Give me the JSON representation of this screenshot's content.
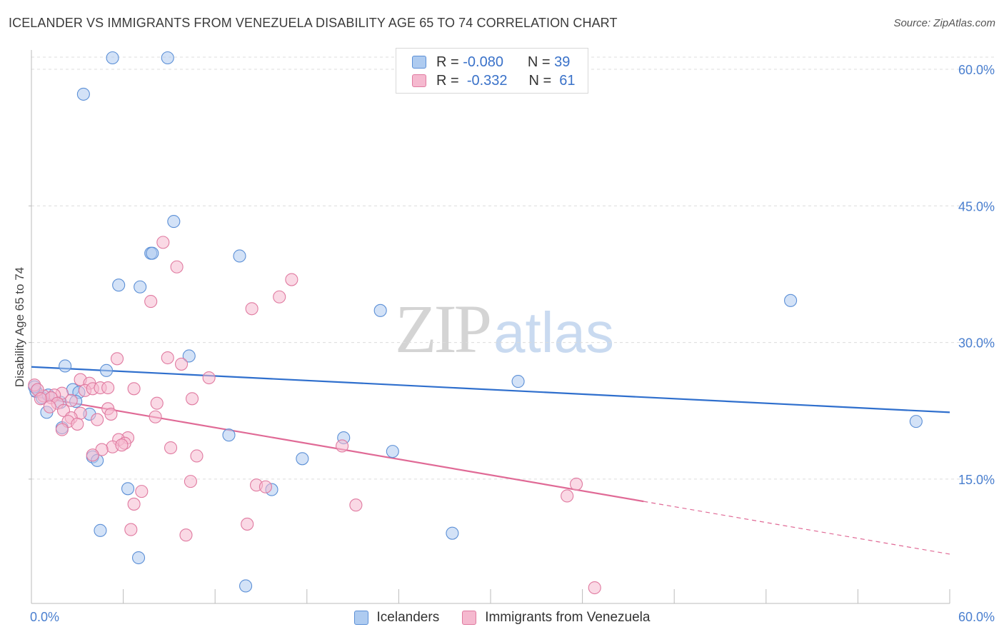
{
  "header": {
    "title": "ICELANDER VS IMMIGRANTS FROM VENEZUELA DISABILITY AGE 65 TO 74 CORRELATION CHART",
    "source": "Source: ZipAtlas.com"
  },
  "legend_box": {
    "rows": [
      {
        "r_label": "R =",
        "r_value": "-0.080",
        "n_label": "N =",
        "n_value": "39"
      },
      {
        "r_label": "R =",
        "r_value": "-0.332",
        "n_label": "N =",
        "n_value": "61"
      }
    ]
  },
  "watermark": {
    "zip": "ZIP",
    "atlas": "atlas"
  },
  "colors": {
    "blue_fill": "#aecbf0",
    "blue_stroke": "#5b8fd6",
    "blue_line": "#2f6fcd",
    "pink_fill": "#f5b9cf",
    "pink_stroke": "#e07aa0",
    "pink_line": "#e06a96",
    "grid": "#dcdcdc",
    "tick_text": "#4a7fcf"
  },
  "chart_data": {
    "type": "scatter",
    "title": "ICELANDER VS IMMIGRANTS FROM VENEZUELA DISABILITY AGE 65 TO 74 CORRELATION CHART",
    "xlabel": "",
    "ylabel": "Disability Age 65 to 74",
    "xlim": [
      0,
      60
    ],
    "ylim": [
      0,
      61
    ],
    "y_ticks": [
      15,
      30,
      45,
      60
    ],
    "y_tick_labels": [
      "15.0%",
      "30.0%",
      "45.0%",
      "60.0%"
    ],
    "x_tick_labels": [
      "0.0%",
      "60.0%"
    ],
    "x_minor_ticks": [
      0,
      6,
      12,
      18,
      24,
      30,
      36,
      42,
      48,
      54,
      60
    ],
    "grid": true,
    "series": [
      {
        "name": "Icelanders",
        "color": "blue",
        "points": [
          [
            5.3,
            60.0
          ],
          [
            8.9,
            60.0
          ],
          [
            3.4,
            56.0
          ],
          [
            9.3,
            42.0
          ],
          [
            7.8,
            38.5
          ],
          [
            7.9,
            38.5
          ],
          [
            13.6,
            38.2
          ],
          [
            5.7,
            35.0
          ],
          [
            7.1,
            34.8
          ],
          [
            22.8,
            32.2
          ],
          [
            49.6,
            33.3
          ],
          [
            10.3,
            27.2
          ],
          [
            2.2,
            26.1
          ],
          [
            4.9,
            25.6
          ],
          [
            31.8,
            24.4
          ],
          [
            0.3,
            23.3
          ],
          [
            0.7,
            22.6
          ],
          [
            1.1,
            22.9
          ],
          [
            2.7,
            23.5
          ],
          [
            3.1,
            23.2
          ],
          [
            1.9,
            22.1
          ],
          [
            2.9,
            22.2
          ],
          [
            1.0,
            21.0
          ],
          [
            3.8,
            20.8
          ],
          [
            2.0,
            19.3
          ],
          [
            57.8,
            20.0
          ],
          [
            12.9,
            18.5
          ],
          [
            20.4,
            18.2
          ],
          [
            23.6,
            16.7
          ],
          [
            4.0,
            16.1
          ],
          [
            4.3,
            15.7
          ],
          [
            17.7,
            15.9
          ],
          [
            6.3,
            12.6
          ],
          [
            15.7,
            12.5
          ],
          [
            4.5,
            8.0
          ],
          [
            27.5,
            7.7
          ],
          [
            7.0,
            5.0
          ],
          [
            14.0,
            1.9
          ],
          [
            0.2,
            23.8
          ]
        ]
      },
      {
        "name": "Immigrants from Venezuela",
        "color": "pink",
        "points": [
          [
            8.6,
            39.7
          ],
          [
            9.5,
            37.0
          ],
          [
            17.0,
            35.6
          ],
          [
            16.2,
            33.7
          ],
          [
            7.8,
            33.2
          ],
          [
            14.4,
            32.4
          ],
          [
            5.6,
            26.9
          ],
          [
            8.9,
            27.0
          ],
          [
            9.8,
            26.3
          ],
          [
            11.6,
            24.8
          ],
          [
            3.2,
            24.6
          ],
          [
            3.8,
            24.2
          ],
          [
            3.5,
            23.4
          ],
          [
            4.0,
            23.6
          ],
          [
            4.5,
            23.7
          ],
          [
            5.0,
            23.7
          ],
          [
            6.7,
            23.6
          ],
          [
            2.0,
            23.1
          ],
          [
            1.5,
            22.9
          ],
          [
            0.8,
            22.8
          ],
          [
            1.3,
            22.6
          ],
          [
            1.7,
            22.0
          ],
          [
            2.6,
            22.3
          ],
          [
            10.5,
            22.5
          ],
          [
            8.2,
            22.0
          ],
          [
            1.2,
            21.6
          ],
          [
            2.1,
            21.2
          ],
          [
            5.0,
            21.4
          ],
          [
            3.2,
            20.9
          ],
          [
            2.6,
            20.4
          ],
          [
            5.2,
            20.8
          ],
          [
            2.4,
            20.0
          ],
          [
            3.0,
            19.7
          ],
          [
            4.3,
            20.2
          ],
          [
            8.1,
            20.5
          ],
          [
            2.0,
            19.1
          ],
          [
            6.3,
            18.2
          ],
          [
            5.7,
            18.0
          ],
          [
            6.1,
            17.6
          ],
          [
            5.3,
            17.2
          ],
          [
            5.9,
            17.4
          ],
          [
            4.6,
            16.9
          ],
          [
            9.1,
            17.1
          ],
          [
            20.3,
            17.3
          ],
          [
            4.0,
            16.3
          ],
          [
            10.8,
            16.2
          ],
          [
            10.4,
            13.4
          ],
          [
            14.7,
            13.0
          ],
          [
            15.3,
            12.8
          ],
          [
            7.2,
            12.3
          ],
          [
            35.6,
            13.1
          ],
          [
            35.0,
            11.8
          ],
          [
            6.7,
            10.9
          ],
          [
            21.2,
            10.8
          ],
          [
            14.1,
            8.7
          ],
          [
            6.5,
            8.1
          ],
          [
            10.1,
            7.5
          ],
          [
            36.8,
            1.7
          ],
          [
            0.2,
            24.0
          ],
          [
            0.4,
            23.5
          ],
          [
            0.6,
            22.5
          ]
        ]
      }
    ],
    "trendlines": [
      {
        "series": "Icelanders",
        "x": [
          0,
          60
        ],
        "y": [
          26.0,
          21.0
        ],
        "dashed_from": null
      },
      {
        "series": "Immigrants from Venezuela",
        "x": [
          0,
          40
        ],
        "y": [
          22.8,
          11.2
        ],
        "dashed_to_x": 60,
        "dashed_to_y": 5.4
      }
    ],
    "legend": [
      "Icelanders",
      "Immigrants from Venezuela"
    ]
  },
  "bottom_legend": {
    "items": [
      {
        "label": "Icelanders"
      },
      {
        "label": "Immigrants from Venezuela"
      }
    ]
  }
}
